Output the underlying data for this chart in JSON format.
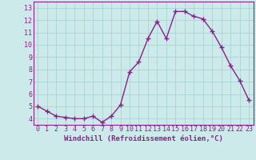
{
  "x": [
    0,
    1,
    2,
    3,
    4,
    5,
    6,
    7,
    8,
    9,
    10,
    11,
    12,
    13,
    14,
    15,
    16,
    17,
    18,
    19,
    20,
    21,
    22,
    23
  ],
  "y": [
    5.0,
    4.6,
    4.2,
    4.1,
    4.0,
    4.0,
    4.2,
    3.7,
    4.2,
    5.1,
    7.8,
    8.6,
    10.5,
    11.9,
    10.5,
    12.7,
    12.7,
    12.3,
    12.1,
    11.1,
    9.8,
    8.3,
    7.1,
    5.5
  ],
  "line_color": "#882288",
  "marker": "+",
  "markersize": 4,
  "markeredgewidth": 1.0,
  "linewidth": 1.0,
  "xlabel": "Windchill (Refroidissement éolien,°C)",
  "xlim": [
    -0.5,
    23.5
  ],
  "ylim": [
    3.5,
    13.5
  ],
  "yticks": [
    4,
    5,
    6,
    7,
    8,
    9,
    10,
    11,
    12,
    13
  ],
  "xticks": [
    0,
    1,
    2,
    3,
    4,
    5,
    6,
    7,
    8,
    9,
    10,
    11,
    12,
    13,
    14,
    15,
    16,
    17,
    18,
    19,
    20,
    21,
    22,
    23
  ],
  "grid_color": "#aad4d4",
  "bg_color": "#cceaea",
  "tick_color": "#882288",
  "label_color": "#882288",
  "xlabel_fontsize": 6.5,
  "tick_fontsize": 6.0
}
